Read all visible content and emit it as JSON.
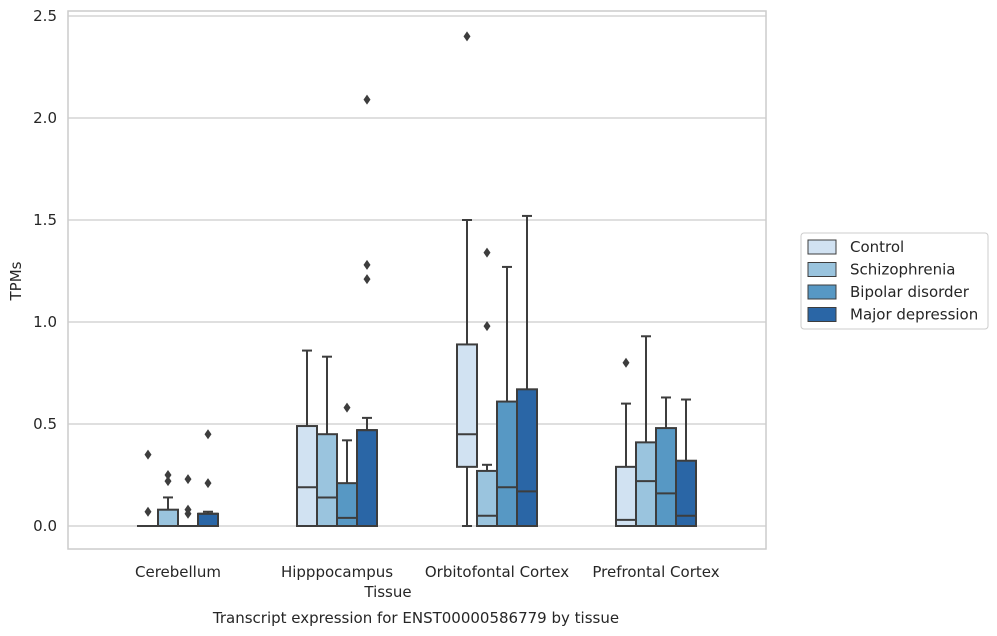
{
  "chart_data": {
    "type": "box",
    "title": "",
    "caption": "Transcript expression for ENST00000586779 by tissue",
    "xlabel": "Tissue",
    "ylabel": "TPMs",
    "ylim": [
      -0.11,
      2.53
    ],
    "yticks": [
      "0.0",
      "0.5",
      "1.0",
      "1.5",
      "2.0",
      "2.5"
    ],
    "grid": true,
    "legend_position": "right",
    "categories": [
      "Cerebellum",
      "Hipppocampus",
      "Orbitofontal Cortex",
      "Prefrontal Cortex"
    ],
    "series": [
      {
        "name": "Control",
        "color": "#d1e2f2",
        "boxes": [
          {
            "min": 0,
            "q1": 0,
            "median": 0,
            "q3": 0,
            "max": 0,
            "outliers": [
              0.07,
              0.35
            ]
          },
          {
            "min": 0,
            "q1": 0,
            "median": 0.19,
            "q3": 0.49,
            "max": 0.86,
            "outliers": []
          },
          {
            "min": 0,
            "q1": 0.29,
            "median": 0.45,
            "q3": 0.89,
            "max": 1.5,
            "outliers": [
              2.4
            ]
          },
          {
            "min": 0,
            "q1": 0,
            "median": 0.03,
            "q3": 0.29,
            "max": 0.6,
            "outliers": [
              0.8
            ]
          }
        ]
      },
      {
        "name": "Schizophrenia",
        "color": "#9ac4de",
        "boxes": [
          {
            "min": 0,
            "q1": 0,
            "median": 0,
            "q3": 0.08,
            "max": 0.14,
            "outliers": [
              0.22,
              0.25
            ]
          },
          {
            "min": 0,
            "q1": 0,
            "median": 0.14,
            "q3": 0.45,
            "max": 0.83,
            "outliers": []
          },
          {
            "min": 0,
            "q1": 0,
            "median": 0.05,
            "q3": 0.27,
            "max": 0.3,
            "outliers": [
              0.98,
              1.34
            ]
          },
          {
            "min": 0,
            "q1": 0,
            "median": 0.22,
            "q3": 0.41,
            "max": 0.93,
            "outliers": []
          }
        ]
      },
      {
        "name": "Bipolar disorder",
        "color": "#5798c4",
        "boxes": [
          {
            "min": 0,
            "q1": 0,
            "median": 0,
            "q3": 0,
            "max": 0,
            "outliers": [
              0.06,
              0.08,
              0.23
            ]
          },
          {
            "min": 0,
            "q1": 0,
            "median": 0.04,
            "q3": 0.21,
            "max": 0.42,
            "outliers": [
              0.58
            ]
          },
          {
            "min": 0,
            "q1": 0,
            "median": 0.19,
            "q3": 0.61,
            "max": 1.27,
            "outliers": []
          },
          {
            "min": 0,
            "q1": 0,
            "median": 0.16,
            "q3": 0.48,
            "max": 0.63,
            "outliers": []
          }
        ]
      },
      {
        "name": "Major depression",
        "color": "#2a66a6",
        "boxes": [
          {
            "min": 0,
            "q1": 0,
            "median": 0.06,
            "q3": 0.06,
            "max": 0.07,
            "outliers": [
              0.21,
              0.45
            ]
          },
          {
            "min": 0,
            "q1": 0,
            "median": 0.47,
            "q3": 0.47,
            "max": 0.53,
            "outliers": [
              1.21,
              1.28,
              2.09
            ]
          },
          {
            "min": 0,
            "q1": 0,
            "median": 0.17,
            "q3": 0.67,
            "max": 1.52,
            "outliers": []
          },
          {
            "min": 0,
            "q1": 0,
            "median": 0.05,
            "q3": 0.32,
            "max": 0.62,
            "outliers": []
          }
        ]
      }
    ]
  }
}
